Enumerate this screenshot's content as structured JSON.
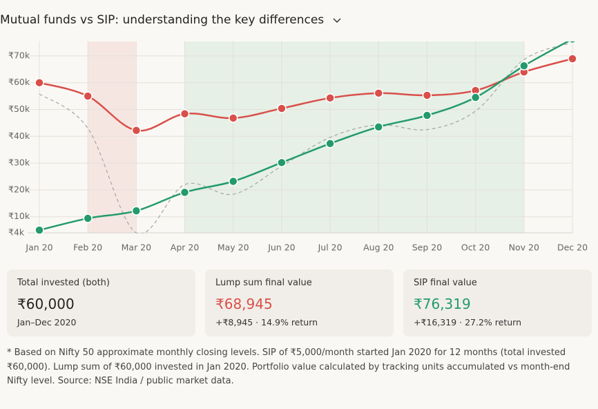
{
  "title": "Mutual funds vs SIP: understanding the key differences",
  "chart_data": {
    "type": "line",
    "categories": [
      "Jan 20",
      "Feb 20",
      "Mar 20",
      "Apr 20",
      "May 20",
      "Jun 20",
      "Jul 20",
      "Aug 20",
      "Sep 20",
      "Oct 20",
      "Nov 20",
      "Dec 20"
    ],
    "series": [
      {
        "color": "#aaaaaa",
        "dashed": true,
        "markers": false,
        "values": [
          55800,
          43000,
          4000,
          22000,
          18400,
          28900,
          39600,
          44300,
          42500,
          49400,
          68600,
          75000
        ]
      },
      {
        "color": "#d94f4a",
        "markers": true,
        "values": [
          60000,
          55000,
          42200,
          48400,
          46800,
          50400,
          54300,
          56100,
          55300,
          57100,
          64000,
          68945
        ]
      },
      {
        "color": "#239a6c",
        "markers": true,
        "values": [
          5000,
          9400,
          12200,
          19100,
          23200,
          30200,
          37300,
          43500,
          47800,
          54500,
          66300,
          76319
        ]
      }
    ],
    "ylim": [
      4000,
      75000
    ],
    "yticks": [
      {
        "value": 4000,
        "label": "₹4k"
      },
      {
        "value": 10000,
        "label": "₹10k"
      },
      {
        "value": 20000,
        "label": "₹20k"
      },
      {
        "value": 30000,
        "label": "₹30k"
      },
      {
        "value": 40000,
        "label": "₹40k"
      },
      {
        "value": 50000,
        "label": "₹50k"
      },
      {
        "value": 60000,
        "label": "₹60k"
      },
      {
        "value": 70000,
        "label": "₹70k"
      }
    ],
    "grid": true
  },
  "cards": [
    {
      "label": "Total invested (both)",
      "value": "₹60,000",
      "note": "Jan–Dec 2020",
      "color": "#222222"
    },
    {
      "label": "Lump sum final value",
      "value": "₹68,945",
      "note": "+₹8,945 · 14.9% return",
      "color": "#d94f4a"
    },
    {
      "label": "SIP final value",
      "value": "₹76,319",
      "note": "+₹16,319 · 27.2% return",
      "color": "#239a6c"
    }
  ],
  "footnote": "* Based on Nifty 50 approximate monthly closing levels. SIP of ₹5,000/month started Jan 2020 for 12 months (total invested ₹60,000). Lump sum of ₹60,000 invested in Jan 2020. Portfolio value calculated by tracking units accumulated vs month-end Nifty level. Source: NSE India / public market data."
}
